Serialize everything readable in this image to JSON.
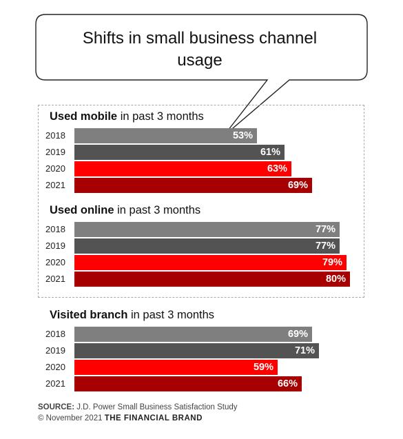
{
  "callout": {
    "title": "Shifts in small business channel usage"
  },
  "colors": {
    "2018": "#7f7f7f",
    "2019": "#535353",
    "2020": "#ff0000",
    "2021": "#a60000"
  },
  "chart_data": [
    {
      "type": "bar",
      "title_bold": "Used mobile",
      "title_rest": " in past 3 months",
      "categories": [
        "2018",
        "2019",
        "2020",
        "2021"
      ],
      "values": [
        53,
        61,
        63,
        69
      ],
      "labels": [
        "53%",
        "61%",
        "63%",
        "69%"
      ]
    },
    {
      "type": "bar",
      "title_bold": "Used online",
      "title_rest": " in past 3 months",
      "categories": [
        "2018",
        "2019",
        "2020",
        "2021"
      ],
      "values": [
        77,
        77,
        79,
        80
      ],
      "labels": [
        "77%",
        "77%",
        "79%",
        "80%"
      ]
    },
    {
      "type": "bar",
      "title_bold": "Visited branch",
      "title_rest": " in past 3 months",
      "categories": [
        "2018",
        "2019",
        "2020",
        "2021"
      ],
      "values": [
        69,
        71,
        59,
        66
      ],
      "labels": [
        "69%",
        "71%",
        "59%",
        "66%"
      ]
    }
  ],
  "footer": {
    "source_label": "SOURCE:",
    "source_text": " J.D. Power Small Business Satisfaction Study",
    "copyright": "© November 2021 ",
    "brand": "THE FINANCIAL BRAND"
  }
}
